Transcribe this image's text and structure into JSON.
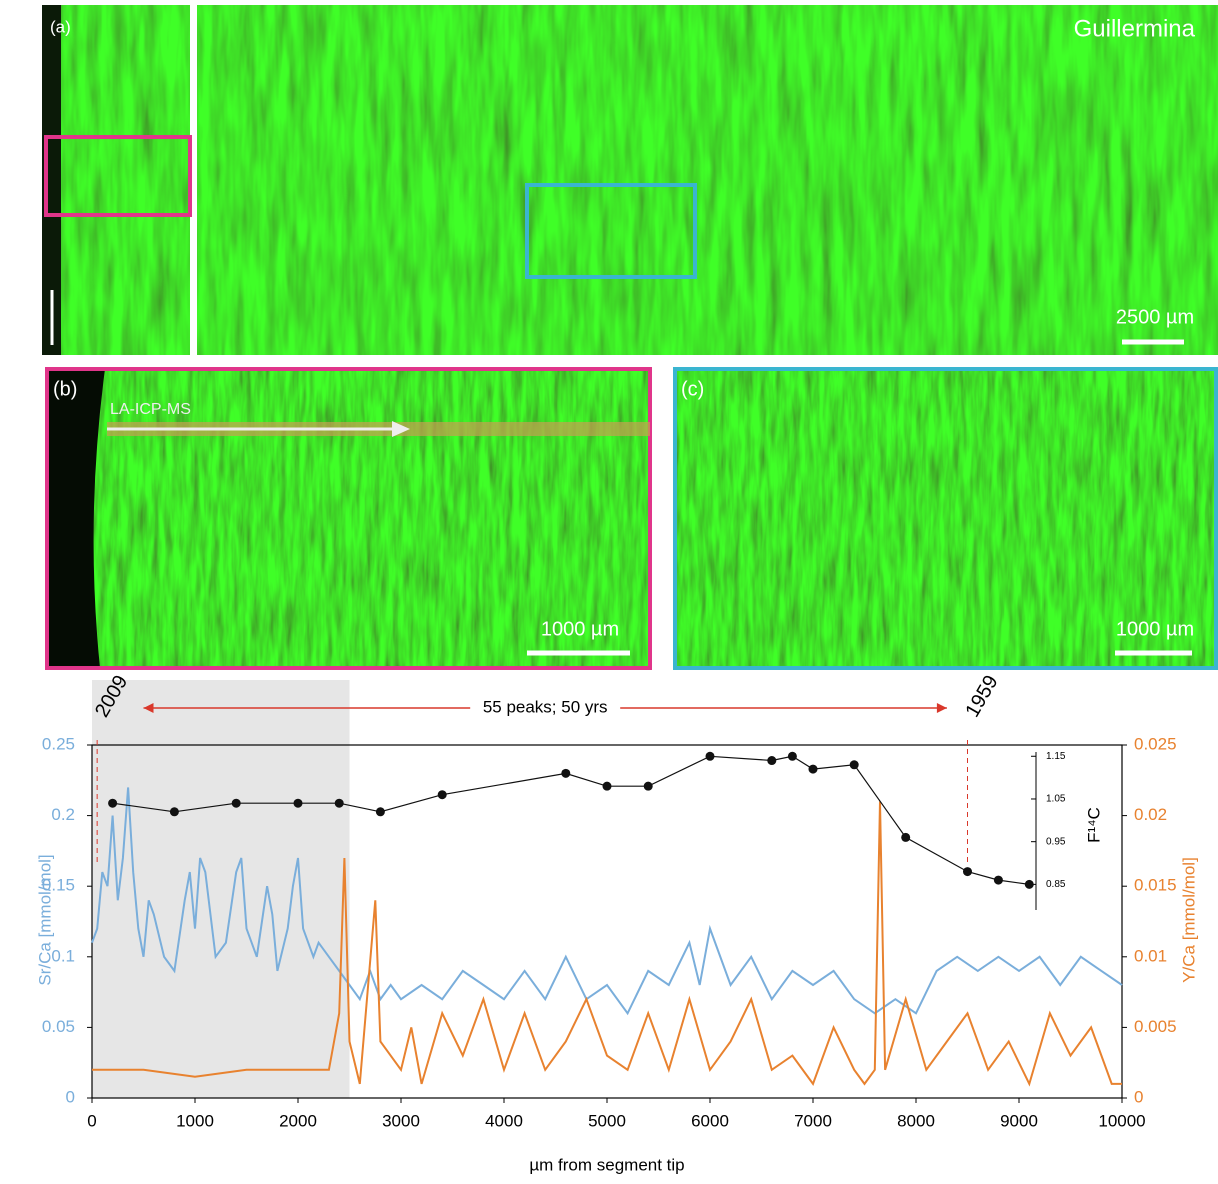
{
  "panels": {
    "a_label": "(a)",
    "a_title": "Guillermina",
    "a_scale": "2500 µm",
    "b_label": "(b)",
    "b_track": "LA-ICP-MS",
    "b_scale": "1000 µm",
    "c_label": "(c)",
    "c_scale": "1000 µm"
  },
  "chart_data": {
    "type": "line",
    "xlabel": "µm from segment tip",
    "ylabel": "Sr/Ca [mmol/mol]",
    "y2label": "Y/Ca [mmol/mol]",
    "y3label": "F¹⁴C",
    "xlim": [
      0,
      10000
    ],
    "xticks": [
      0,
      1000,
      2000,
      3000,
      4000,
      5000,
      6000,
      7000,
      8000,
      9000,
      10000
    ],
    "ylim": [
      0,
      0.25
    ],
    "yticks": [
      0,
      0.05,
      0.1,
      0.15,
      0.2,
      0.25
    ],
    "y2lim": [
      0,
      0.025
    ],
    "y2ticks": [
      0,
      0.005,
      0.01,
      0.015,
      0.02,
      0.025
    ],
    "y3lim": [
      0.79,
      1.16
    ],
    "y3ticks": [
      0.85,
      0.95,
      1.05,
      1.15
    ],
    "highlight_range": [
      0,
      2500
    ],
    "annotations": [
      {
        "text": "2009",
        "x": 50
      },
      {
        "text": "1959",
        "x": 8500
      },
      {
        "text": "55 peaks; 50 yrs",
        "x_range": [
          500,
          8300
        ]
      }
    ],
    "series": [
      {
        "color": "#7aaedb",
        "axis": "y",
        "x": [
          0,
          50,
          100,
          150,
          200,
          250,
          300,
          350,
          400,
          450,
          500,
          550,
          600,
          700,
          800,
          900,
          950,
          1000,
          1050,
          1100,
          1200,
          1300,
          1400,
          1450,
          1500,
          1600,
          1700,
          1750,
          1800,
          1900,
          1950,
          2000,
          2050,
          2150,
          2200,
          2300,
          2400,
          2500,
          2600,
          2700,
          2800,
          2900,
          3000,
          3200,
          3400,
          3600,
          3800,
          4000,
          4200,
          4400,
          4600,
          4800,
          5000,
          5200,
          5400,
          5600,
          5800,
          5900,
          6000,
          6200,
          6400,
          6600,
          6800,
          7000,
          7200,
          7400,
          7600,
          7800,
          8000,
          8200,
          8400,
          8600,
          8800,
          9000,
          9200,
          9400,
          9600,
          9800,
          10000
        ],
        "values": [
          0.11,
          0.12,
          0.16,
          0.15,
          0.2,
          0.14,
          0.17,
          0.22,
          0.16,
          0.12,
          0.1,
          0.14,
          0.13,
          0.1,
          0.09,
          0.14,
          0.16,
          0.12,
          0.17,
          0.16,
          0.1,
          0.11,
          0.16,
          0.17,
          0.12,
          0.1,
          0.15,
          0.13,
          0.09,
          0.12,
          0.15,
          0.17,
          0.12,
          0.1,
          0.11,
          0.1,
          0.09,
          0.08,
          0.07,
          0.09,
          0.07,
          0.08,
          0.07,
          0.08,
          0.07,
          0.09,
          0.08,
          0.07,
          0.09,
          0.07,
          0.1,
          0.07,
          0.08,
          0.06,
          0.09,
          0.08,
          0.11,
          0.08,
          0.12,
          0.08,
          0.1,
          0.07,
          0.09,
          0.08,
          0.09,
          0.07,
          0.06,
          0.07,
          0.06,
          0.09,
          0.1,
          0.09,
          0.1,
          0.09,
          0.1,
          0.08,
          0.1,
          0.09,
          0.08
        ]
      },
      {
        "color": "#e8822f",
        "axis": "y2",
        "x": [
          0,
          500,
          1000,
          1500,
          2000,
          2300,
          2400,
          2450,
          2500,
          2600,
          2750,
          2800,
          3000,
          3100,
          3200,
          3400,
          3600,
          3800,
          4000,
          4200,
          4400,
          4600,
          4800,
          5000,
          5200,
          5400,
          5600,
          5800,
          6000,
          6200,
          6400,
          6600,
          6800,
          7000,
          7200,
          7400,
          7500,
          7600,
          7650,
          7700,
          7900,
          8100,
          8300,
          8500,
          8700,
          8900,
          9100,
          9300,
          9500,
          9700,
          9900,
          10000
        ],
        "values": [
          0.002,
          0.002,
          0.0015,
          0.002,
          0.002,
          0.002,
          0.006,
          0.017,
          0.004,
          0.001,
          0.014,
          0.004,
          0.002,
          0.005,
          0.001,
          0.006,
          0.003,
          0.007,
          0.002,
          0.006,
          0.002,
          0.004,
          0.007,
          0.003,
          0.002,
          0.006,
          0.002,
          0.007,
          0.002,
          0.004,
          0.007,
          0.002,
          0.003,
          0.001,
          0.005,
          0.002,
          0.001,
          0.002,
          0.021,
          0.002,
          0.007,
          0.002,
          0.004,
          0.006,
          0.002,
          0.004,
          0.001,
          0.006,
          0.003,
          0.005,
          0.001,
          0.001
        ]
      },
      {
        "color": "#111111",
        "axis": "y3",
        "marker": true,
        "x": [
          200,
          800,
          1400,
          2000,
          2400,
          2800,
          3400,
          4600,
          5000,
          5400,
          6000,
          6600,
          6800,
          7000,
          7400,
          7900,
          8500,
          8800,
          9100
        ],
        "values": [
          1.04,
          1.02,
          1.04,
          1.04,
          1.04,
          1.02,
          1.06,
          1.11,
          1.08,
          1.08,
          1.15,
          1.14,
          1.15,
          1.12,
          1.13,
          0.96,
          0.88,
          0.86,
          0.85
        ]
      }
    ]
  }
}
